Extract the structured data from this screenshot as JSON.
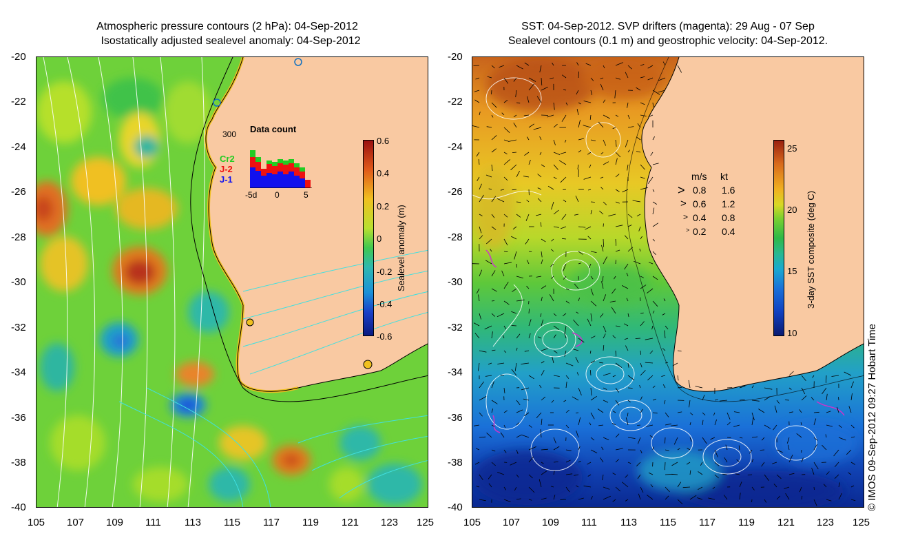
{
  "left_panel": {
    "title_line1": "Atmospheric pressure contours (2 hPa): 04-Sep-2012",
    "title_line2": "Isostatically adjusted sealevel anomaly: 04-Sep-2012",
    "lat_ticks": [
      "-20",
      "-22",
      "-24",
      "-26",
      "-28",
      "-30",
      "-32",
      "-34",
      "-36",
      "-38",
      "-40"
    ],
    "lon_ticks": [
      "105",
      "107",
      "109",
      "111",
      "113",
      "115",
      "117",
      "119",
      "121",
      "123",
      "125"
    ],
    "colorbar": {
      "title": "Sealevel anomaly (m)",
      "labels": [
        "0.6",
        "0.4",
        "0.2",
        "0",
        "-0.2",
        "-0.4",
        "-0.6"
      ],
      "range": [
        -0.6,
        0.6
      ]
    },
    "inset": {
      "title": "Data count",
      "ymax_label": "300",
      "x_labels": [
        "-5d",
        "0",
        "5"
      ],
      "series": [
        {
          "name": "Cr2",
          "color": "#22cc22"
        },
        {
          "name": "J-2",
          "color": "#ee1111"
        },
        {
          "name": "J-1",
          "color": "#1111ee"
        }
      ]
    }
  },
  "right_panel": {
    "title_line1": "SST: 04-Sep-2012. SVP drifters (magenta): 29 Aug - 07 Sep",
    "title_line2": "Sealevel contours (0.1 m) and geostrophic velocity: 04-Sep-2012.",
    "lat_ticks": [
      "-20",
      "-22",
      "-24",
      "-26",
      "-28",
      "-30",
      "-32",
      "-34",
      "-36",
      "-38",
      "-40"
    ],
    "lon_ticks": [
      "105",
      "107",
      "109",
      "111",
      "113",
      "115",
      "117",
      "119",
      "121",
      "123",
      "125"
    ],
    "colorbar": {
      "title": "3-day SST composite (deg C)",
      "labels": [
        "25",
        "20",
        "15",
        "10"
      ],
      "range": [
        10,
        26
      ]
    },
    "velocity_legend": {
      "header_ms": "m/s",
      "header_kt": "kt",
      "rows": [
        {
          "ms": "0.8",
          "kt": "1.6"
        },
        {
          "ms": "0.6",
          "kt": "1.2"
        },
        {
          "ms": "0.4",
          "kt": "0.8"
        },
        {
          "ms": "0.2",
          "kt": "0.4"
        }
      ]
    },
    "credit": "© IMOS 09-Sep-2012 09:27 Hobart Time"
  },
  "colors": {
    "land": "#f9c9a2",
    "coast": "#000000"
  }
}
